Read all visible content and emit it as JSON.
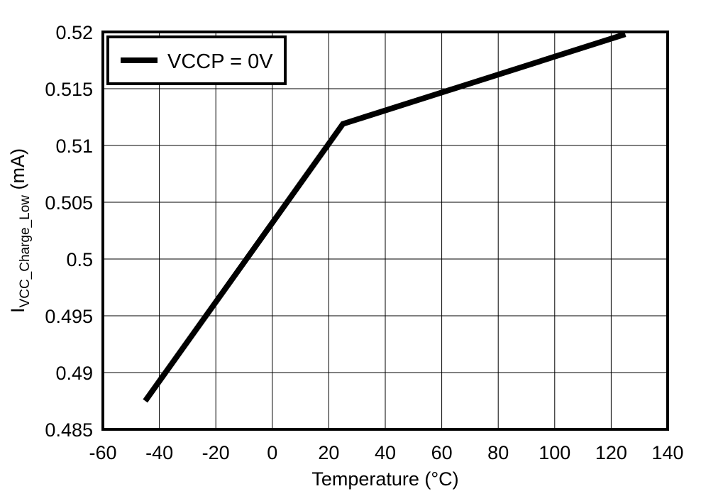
{
  "chart_data": {
    "type": "line",
    "title": "",
    "xlabel": "Temperature (°C)",
    "ylabel": {
      "main": "I",
      "subscript": "VCC_Charge_Low",
      "unit": " (mA)"
    },
    "xlim": [
      -60,
      140
    ],
    "ylim": [
      0.485,
      0.52
    ],
    "x_ticks": [
      "-60",
      "-40",
      "-20",
      "0",
      "20",
      "40",
      "60",
      "80",
      "100",
      "120",
      "140"
    ],
    "y_ticks": [
      "0.485",
      "0.49",
      "0.495",
      "0.5",
      "0.505",
      "0.51",
      "0.515",
      "0.52"
    ],
    "grid": true,
    "legend_position": "top-left",
    "series": [
      {
        "name": "VCCP = 0V",
        "color": "#000000",
        "x": [
          -45,
          25,
          125
        ],
        "y": [
          0.4875,
          0.5119,
          0.5198
        ]
      }
    ]
  }
}
